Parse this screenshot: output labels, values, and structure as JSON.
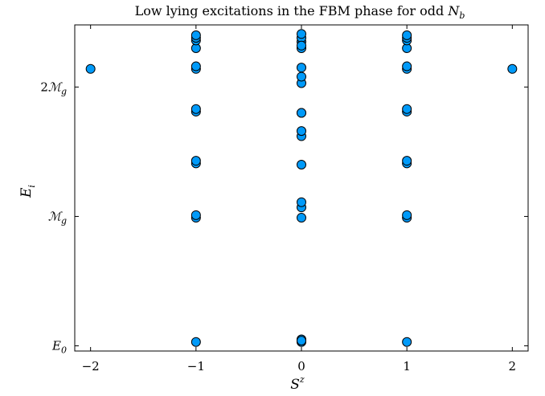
{
  "chart_data": {
    "type": "scatter",
    "title": "Low lying excitations in the FBM phase for odd N_b",
    "xlabel": "S^z",
    "ylabel": "E_i",
    "xlim": [
      -2.15,
      2.15
    ],
    "ylim": [
      -0.04,
      2.48
    ],
    "x_ticks": [
      {
        "value": -2,
        "label": "−2"
      },
      {
        "value": -1,
        "label": "−1"
      },
      {
        "value": 0,
        "label": "0"
      },
      {
        "value": 1,
        "label": "1"
      },
      {
        "value": 2,
        "label": "2"
      }
    ],
    "y_ticks": [
      {
        "value": 0,
        "label": "E_0"
      },
      {
        "value": 1,
        "label": "M_g"
      },
      {
        "value": 2,
        "label": "2M_g"
      }
    ],
    "grid": false,
    "legend": "none",
    "marker_color": "#009af9",
    "series": [
      {
        "x": [
          -2,
          -1,
          -1,
          -1,
          -1,
          -1,
          -1,
          -1,
          -1,
          -1,
          -1,
          -1,
          -1,
          -1,
          0,
          0,
          0,
          0,
          0,
          0,
          0,
          0,
          0,
          0,
          0,
          0,
          0,
          0,
          0,
          0,
          0,
          0,
          0,
          1,
          1,
          1,
          1,
          1,
          1,
          1,
          1,
          1,
          1,
          1,
          1,
          1,
          2
        ],
        "y": [
          2.14,
          0.03,
          0.99,
          1.01,
          1.41,
          1.43,
          1.81,
          1.83,
          2.14,
          2.16,
          2.3,
          2.36,
          2.38,
          2.4,
          0.03,
          0.05,
          0.99,
          1.07,
          1.11,
          1.4,
          1.62,
          1.66,
          1.8,
          2.03,
          2.08,
          2.15,
          2.3,
          2.35,
          2.38,
          2.41,
          0.04,
          1.8,
          2.32,
          0.03,
          0.99,
          1.01,
          1.41,
          1.43,
          1.81,
          1.83,
          2.14,
          2.16,
          2.3,
          2.36,
          2.38,
          2.4,
          2.14
        ]
      }
    ]
  }
}
